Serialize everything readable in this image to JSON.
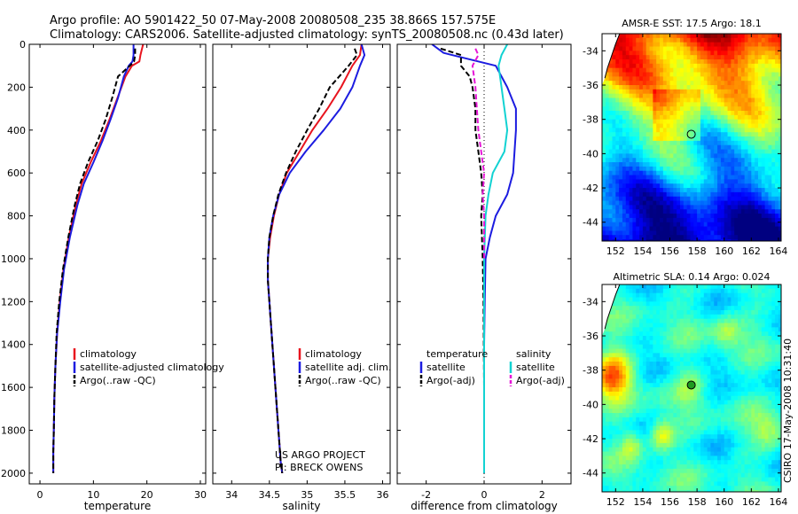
{
  "header": {
    "line1": "Argo profile: AO 5901422_50 07-May-2008 20080508_235 38.866S 157.575E",
    "line2": "Climatology: CARS2006. Satellite-adjusted climatology: synTS_20080508.nc (0.43d later)"
  },
  "credit": {
    "line1": "US ARGO PROJECT",
    "line2": "PI: BRECK OWENS"
  },
  "stamp": "CSIRO 17-May-2008 10:31:40",
  "colors": {
    "climatology": "#e8141e",
    "satellite": "#1c1ce0",
    "argo": "#000000",
    "salinity_satellite": "#12d2d2",
    "salinity_argo": "#e616d6",
    "marker_sst": "#000000",
    "marker_sla": "#1f9a1f"
  },
  "chart_data": [
    {
      "type": "line",
      "xlabel": "temperature",
      "ylabel": "",
      "xlim": [
        -2,
        31
      ],
      "ylim": [
        2050,
        0
      ],
      "xticks": [
        0,
        10,
        20,
        30
      ],
      "yticks": [
        0,
        200,
        400,
        600,
        800,
        1000,
        1200,
        1400,
        1600,
        1800,
        2000
      ],
      "legend": {
        "placement": "bottom",
        "entries": [
          "climatology",
          "satellite-adjusted climatology",
          "Argo(..raw -QC)"
        ]
      },
      "series": [
        {
          "name": "climatology",
          "color": "#e8141e",
          "dash": false,
          "x": [
            19.3,
            18.8,
            18.6,
            17.2,
            16.0,
            14.5,
            13.0,
            11.4,
            9.5,
            7.8,
            6.7,
            5.4,
            4.4,
            3.7,
            3.2,
            2.9,
            2.7,
            2.6,
            2.5,
            2.5
          ],
          "y": [
            0,
            50,
            80,
            100,
            150,
            250,
            350,
            450,
            550,
            650,
            750,
            900,
            1050,
            1200,
            1350,
            1500,
            1650,
            1800,
            1900,
            2000
          ]
        },
        {
          "name": "satellite-adjusted climatology",
          "color": "#1c1ce0",
          "dash": false,
          "x": [
            17.5,
            17.5,
            17.3,
            16.6,
            15.7,
            14.6,
            13.2,
            11.7,
            10.0,
            8.2,
            7.0,
            5.6,
            4.5,
            3.8,
            3.2,
            2.9,
            2.7,
            2.6,
            2.5,
            2.5
          ],
          "y": [
            0,
            50,
            80,
            100,
            150,
            250,
            350,
            450,
            550,
            650,
            750,
            900,
            1050,
            1200,
            1350,
            1500,
            1650,
            1800,
            1900,
            2000
          ]
        },
        {
          "name": "Argo(..raw -QC)",
          "color": "#000000",
          "dash": true,
          "x": [
            17.8,
            17.8,
            17.6,
            16.8,
            14.6,
            13.5,
            12.3,
            10.8,
            9.0,
            7.5,
            6.5,
            5.3,
            4.3,
            3.6,
            3.1,
            2.9,
            2.7,
            2.6,
            2.5,
            2.5
          ],
          "y": [
            20,
            50,
            80,
            100,
            150,
            250,
            350,
            450,
            550,
            650,
            750,
            900,
            1050,
            1200,
            1350,
            1500,
            1650,
            1800,
            1900,
            2000
          ]
        }
      ]
    },
    {
      "type": "line",
      "xlabel": "salinity",
      "ylabel": "",
      "xlim": [
        33.75,
        36.1
      ],
      "ylim": [
        2050,
        0
      ],
      "xticks": [
        34,
        34.5,
        35,
        35.5,
        36
      ],
      "yticks": [
        0,
        200,
        400,
        600,
        800,
        1000,
        1200,
        1400,
        1600,
        1800,
        2000
      ],
      "legend": {
        "placement": "bottom",
        "entries": [
          "climatology",
          "satellite adj. clim.",
          "Argo(..raw -QC)"
        ]
      },
      "series": [
        {
          "name": "climatology",
          "color": "#e8141e",
          "dash": false,
          "x": [
            35.72,
            35.7,
            35.6,
            35.45,
            35.27,
            35.07,
            34.9,
            34.73,
            34.63,
            34.56,
            34.51,
            34.48,
            34.48,
            34.52,
            34.56,
            34.6,
            34.63,
            34.65,
            34.67
          ],
          "y": [
            0,
            50,
            100,
            200,
            300,
            400,
            500,
            600,
            700,
            800,
            900,
            1000,
            1100,
            1300,
            1500,
            1700,
            1850,
            1950,
            2000
          ]
        },
        {
          "name": "satellite adj. clim.",
          "color": "#1c1ce0",
          "dash": false,
          "x": [
            35.72,
            35.76,
            35.7,
            35.6,
            35.44,
            35.22,
            34.98,
            34.77,
            34.63,
            34.55,
            34.5,
            34.48,
            34.48,
            34.52,
            34.56,
            34.6,
            34.63,
            34.65,
            34.67
          ],
          "y": [
            0,
            50,
            100,
            200,
            300,
            400,
            500,
            600,
            700,
            800,
            900,
            1000,
            1100,
            1300,
            1500,
            1700,
            1850,
            1950,
            2000
          ]
        },
        {
          "name": "Argo(..raw -QC)",
          "color": "#000000",
          "dash": true,
          "x": [
            35.63,
            35.66,
            35.55,
            35.3,
            35.16,
            35.0,
            34.85,
            34.72,
            34.62,
            34.55,
            34.5,
            34.48,
            34.48,
            34.52,
            34.56,
            34.6,
            34.63,
            34.65,
            34.67
          ],
          "y": [
            20,
            50,
            100,
            200,
            300,
            400,
            500,
            600,
            700,
            800,
            900,
            1000,
            1100,
            1300,
            1500,
            1700,
            1850,
            1950,
            2000
          ]
        }
      ]
    },
    {
      "type": "line",
      "xlabel": "difference from climatology",
      "ylabel": "",
      "xlim": [
        -3,
        3
      ],
      "ylim": [
        2050,
        0
      ],
      "xticks": [
        -2,
        0,
        2
      ],
      "yticks": [
        0,
        200,
        400,
        600,
        800,
        1000,
        1200,
        1400,
        1600,
        1800,
        2000
      ],
      "zero_line": true,
      "legend": {
        "placement": "bottom",
        "groups": [
          "temperature",
          "salinity"
        ],
        "entries": [
          "satellite",
          "Argo(-adj)",
          "satellite",
          "Argo(-adj)"
        ]
      },
      "series": [
        {
          "name": "satellite",
          "group": "temperature",
          "color": "#1c1ce0",
          "dash": false,
          "x": [
            -1.8,
            -1.4,
            0.4,
            0.8,
            1.1,
            1.1,
            1.05,
            1.0,
            0.8,
            0.4,
            0.2,
            0.05,
            0.02,
            0.0,
            0.0,
            0.0,
            0.0
          ],
          "y": [
            0,
            40,
            100,
            200,
            300,
            400,
            500,
            600,
            700,
            800,
            900,
            1000,
            1200,
            1400,
            1600,
            1800,
            2000
          ]
        },
        {
          "name": "Argo(-adj)",
          "group": "temperature",
          "color": "#000000",
          "dash": true,
          "x": [
            -1.5,
            -0.8,
            -0.8,
            -0.5,
            -0.4,
            -0.3,
            -0.3,
            -0.2,
            -0.1,
            -0.05,
            -0.1,
            -0.05,
            -0.02,
            0.0,
            0.0
          ],
          "y": [
            20,
            50,
            100,
            150,
            200,
            300,
            400,
            500,
            600,
            700,
            800,
            1000,
            1200,
            1600,
            2000
          ]
        },
        {
          "name": "satellite",
          "group": "salinity",
          "color": "#12d2d2",
          "dash": false,
          "x": [
            0.8,
            0.6,
            0.5,
            0.6,
            0.7,
            0.8,
            0.7,
            0.3,
            0.15,
            0.05,
            0.0,
            0.0,
            0.0
          ],
          "y": [
            0,
            50,
            100,
            200,
            300,
            400,
            500,
            600,
            700,
            800,
            1000,
            1500,
            2000
          ]
        },
        {
          "name": "Argo(-adj)",
          "group": "salinity",
          "color": "#e616d6",
          "dash": true,
          "x": [
            -0.3,
            -0.2,
            -0.4,
            -0.3,
            -0.25,
            -0.2,
            -0.1,
            0.0,
            -0.05,
            0.0,
            0.0
          ],
          "y": [
            20,
            50,
            100,
            200,
            300,
            400,
            500,
            600,
            700,
            800,
            1000
          ]
        }
      ]
    },
    {
      "type": "heatmap",
      "title": "AMSR-E SST: 17.5 Argo: 18.1",
      "xlim": [
        151,
        164.2
      ],
      "ylim": [
        -45.1,
        -33
      ],
      "xticks": [
        152,
        154,
        156,
        158,
        160,
        162,
        164
      ],
      "yticks": [
        -34,
        -36,
        -38,
        -40,
        -42,
        -44
      ],
      "marker": {
        "lon": 157.575,
        "lat": -38.866
      }
    },
    {
      "type": "heatmap",
      "title": "Altimetric SLA: 0.14 Argo: 0.024",
      "xlim": [
        151,
        164.2
      ],
      "ylim": [
        -45.1,
        -33
      ],
      "xticks": [
        152,
        154,
        156,
        158,
        160,
        162,
        164
      ],
      "yticks": [
        -34,
        -36,
        -38,
        -40,
        -42,
        -44
      ],
      "marker": {
        "lon": 157.575,
        "lat": -38.866
      }
    }
  ]
}
